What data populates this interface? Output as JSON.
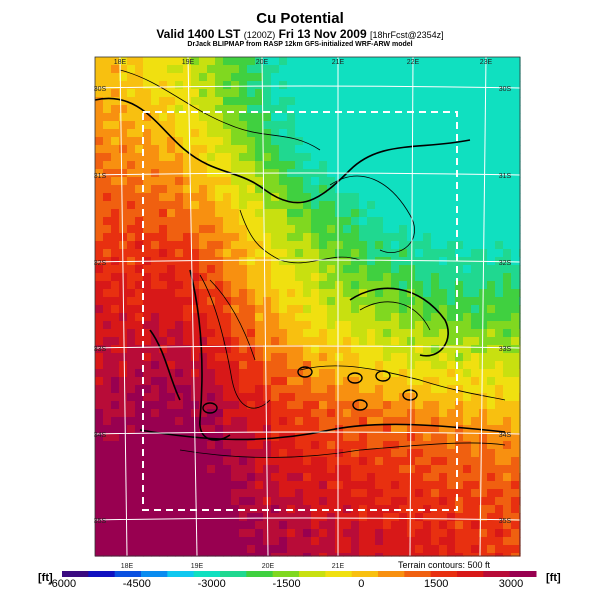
{
  "title": "Cu Potential",
  "subtitle": {
    "main": "Valid 1400 LST",
    "utc": "(1200Z)",
    "date": "Fri 13 Nov 2009",
    "forecast": "[18hrFcst@2354z]"
  },
  "credit": "DrJack BLIPMAP from RASP 12km GFS-initialized WRF-ARW model",
  "chart_data": {
    "type": "heatmap",
    "title": "Cu Potential",
    "lon_labels_top": [
      "18E",
      "19E",
      "20E",
      "21E",
      "22E",
      "23E"
    ],
    "lon_labels_bottom": [
      "18E",
      "19E",
      "20E",
      "21E"
    ],
    "lat_labels_left": [
      "30S",
      "31S",
      "32S",
      "33S",
      "34S",
      "35S"
    ],
    "lat_labels_right": [
      "30S",
      "31S",
      "32S",
      "33S",
      "34S",
      "35S"
    ],
    "colorbar": {
      "unit": "[ft]",
      "ticks": [
        "-6000",
        "-4500",
        "-3000",
        "-1500",
        "0",
        "1500",
        "3000"
      ],
      "range": [
        -6000,
        3500
      ],
      "colors": [
        "#3a0a80",
        "#1010c0",
        "#0a50e0",
        "#0a8cf0",
        "#10c8f0",
        "#10e0c0",
        "#20d890",
        "#40d040",
        "#80d820",
        "#c8e010",
        "#f0e010",
        "#f8c010",
        "#f89010",
        "#f06010",
        "#e83010",
        "#d81818",
        "#b80c38",
        "#980050"
      ]
    },
    "contour_interval_label": "Terrain contours: 500 ft",
    "grid": true,
    "inner_box": "dashed-white"
  },
  "colors": {
    "contour": "#000000",
    "grid": "#ffffff"
  }
}
